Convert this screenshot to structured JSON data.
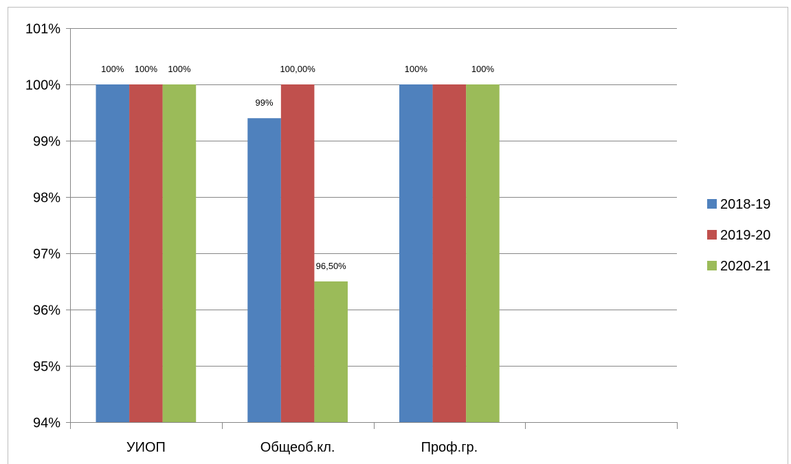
{
  "chart_data": {
    "type": "bar",
    "title": "",
    "xlabel": "",
    "ylabel": "",
    "categories": [
      "УИОП",
      "Общеоб.кл.",
      "Проф.гр."
    ],
    "series": [
      {
        "name": "2018-19",
        "values": [
          100,
          99.4,
          100
        ],
        "labels": [
          "100%",
          "99%",
          "100%"
        ],
        "color": "#4f81bd"
      },
      {
        "name": "2019-20",
        "values": [
          100,
          100,
          100
        ],
        "labels": [
          "100%",
          "100,00%",
          "100%"
        ],
        "color": "#c0504d"
      },
      {
        "name": "2020-21",
        "values": [
          100,
          96.5,
          100
        ],
        "labels": [
          "100%",
          "96,50%",
          "100%"
        ],
        "color": "#9bbb59"
      }
    ],
    "ylim": [
      94,
      101
    ],
    "yticks": [
      94,
      95,
      96,
      97,
      98,
      99,
      100,
      101
    ],
    "ytick_labels": [
      "94%",
      "95%",
      "96%",
      "97%",
      "98%",
      "99%",
      "100%",
      "101%"
    ],
    "grid": true,
    "legend": "right",
    "data_label_display": [
      [
        true,
        true,
        true
      ],
      [
        true,
        true,
        true
      ],
      [
        true,
        false,
        true
      ]
    ]
  }
}
